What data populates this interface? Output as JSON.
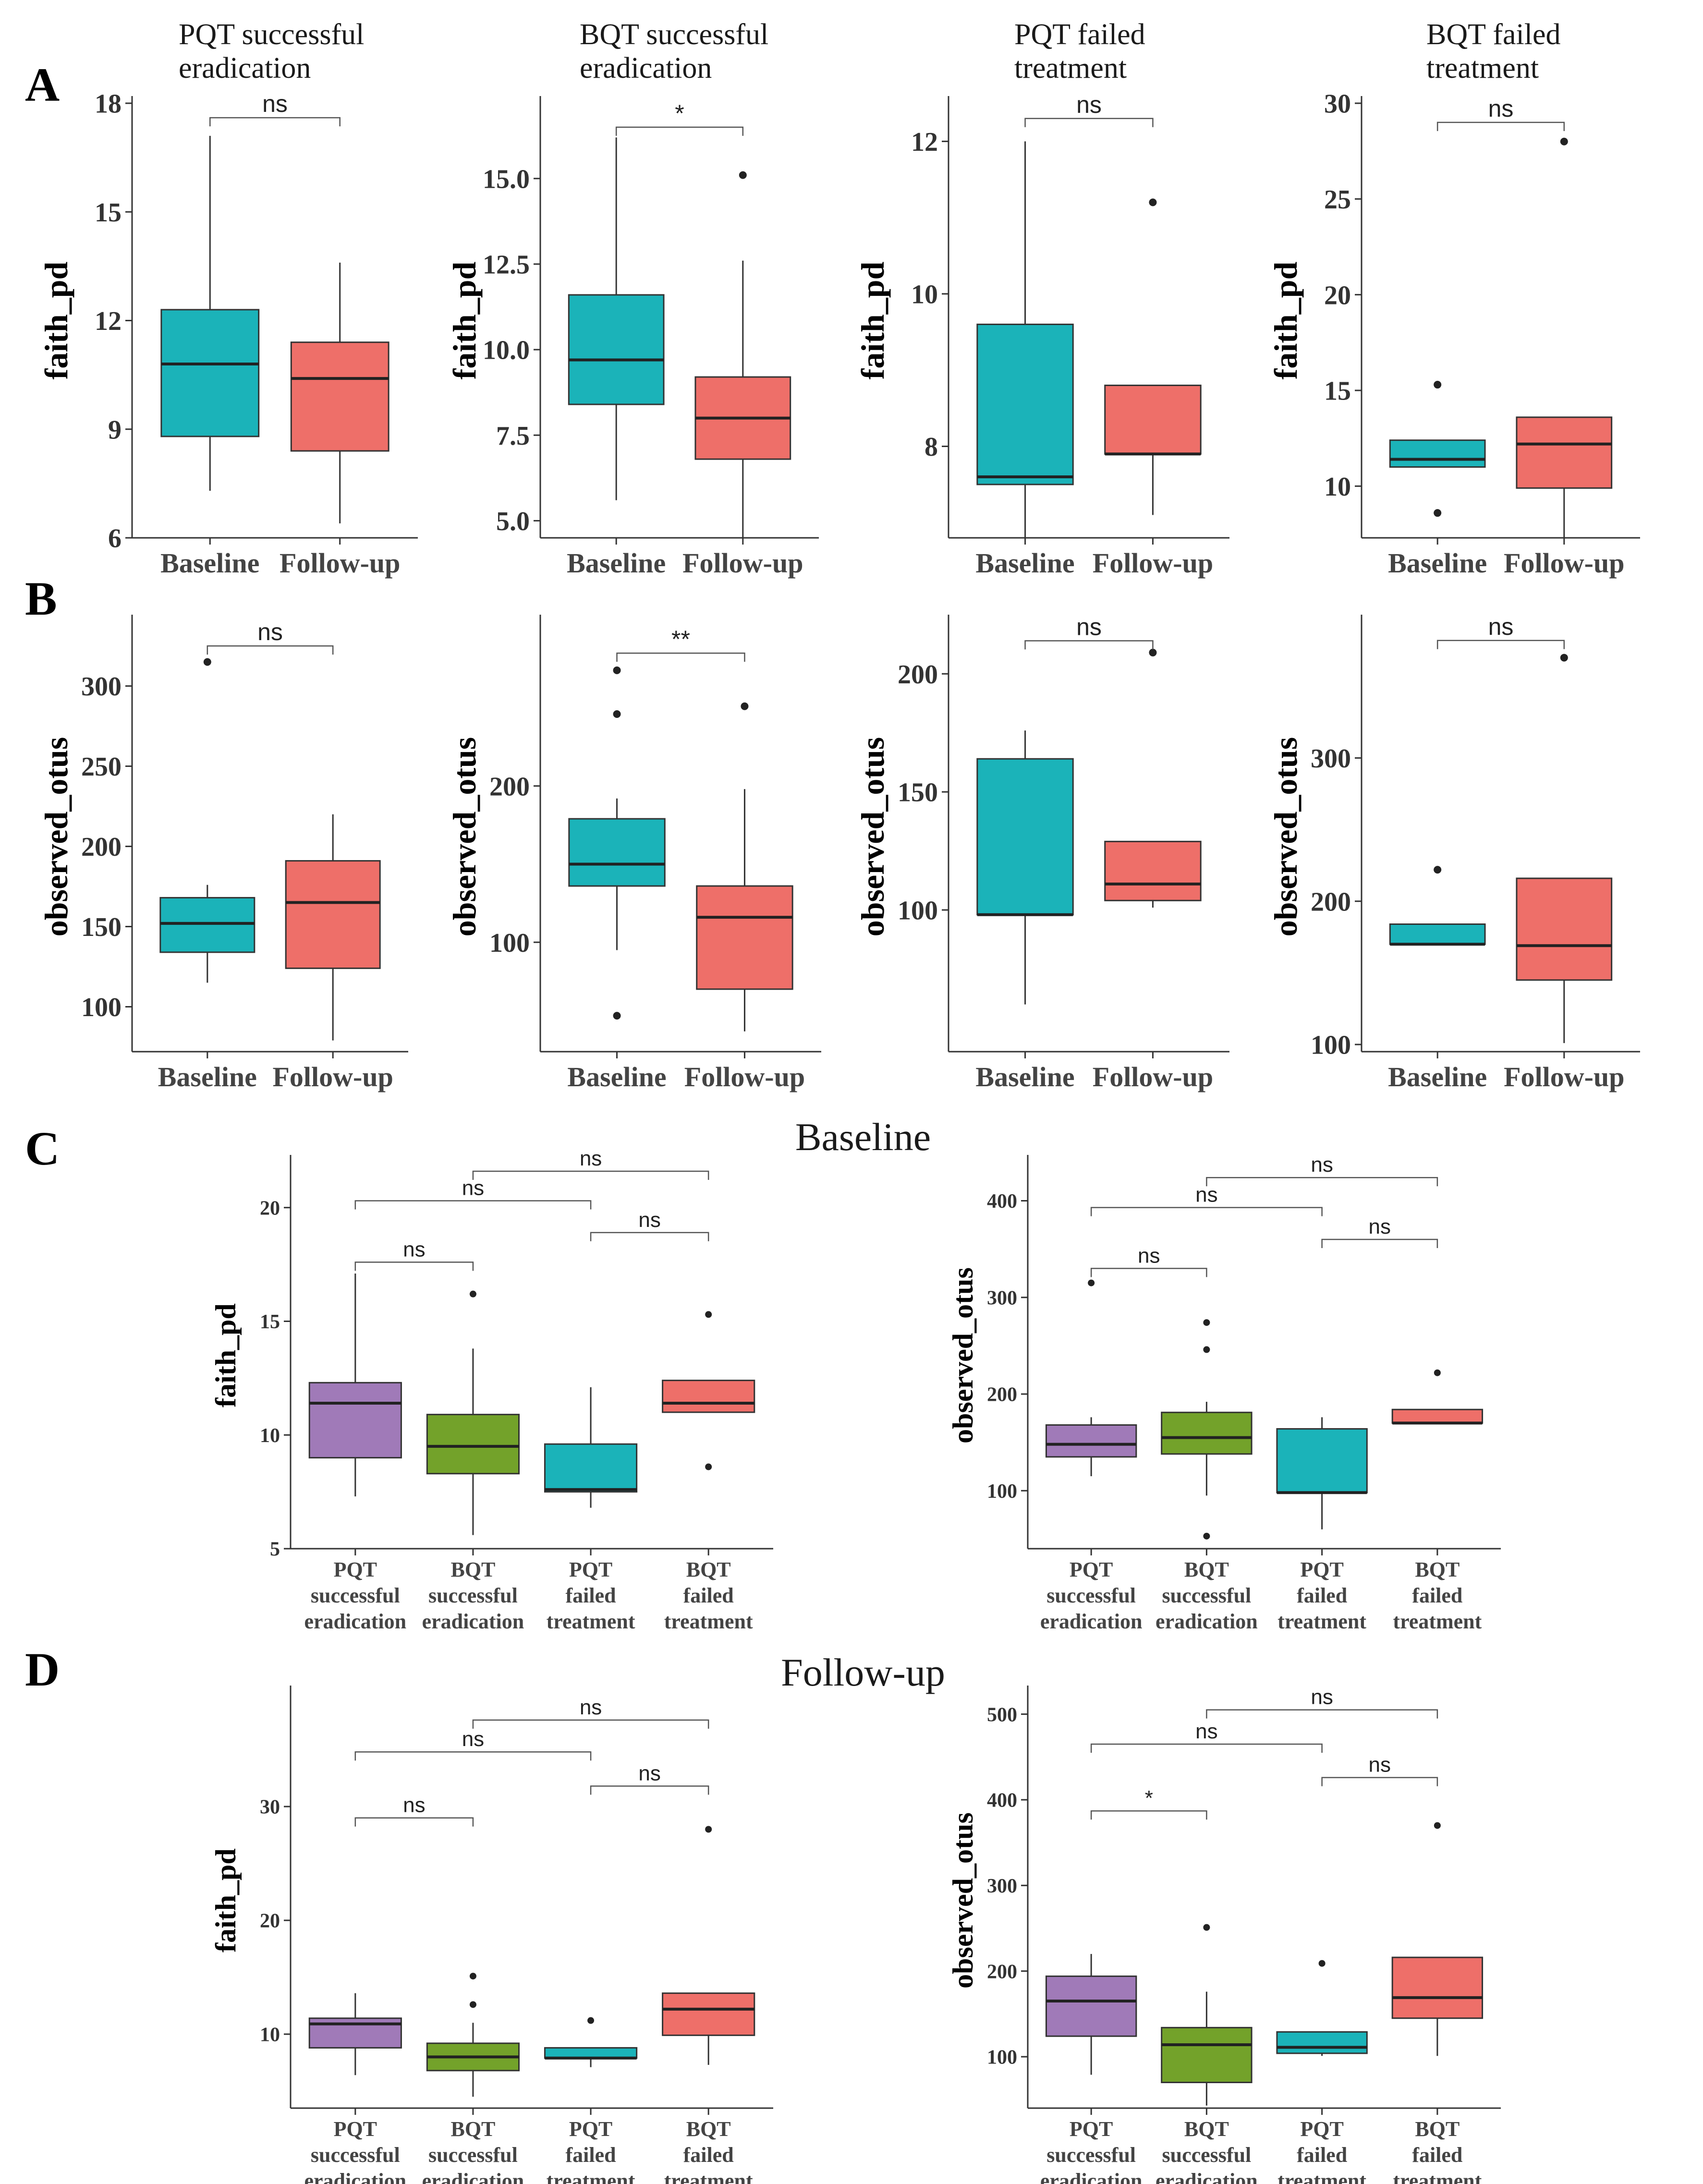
{
  "panel_letters": [
    "A",
    "B",
    "C",
    "D"
  ],
  "column_titles": [
    [
      "PQT successful",
      "eradication"
    ],
    [
      "BQT successful",
      "eradication"
    ],
    [
      "PQT failed",
      "treatment"
    ],
    [
      "BQT failed",
      "treatment"
    ]
  ],
  "row_titles": {
    "C": "Baseline",
    "D": "Follow-up"
  },
  "colors": {
    "baseline": "#1bb3b9",
    "followup": "#ee6f69",
    "pqt_success": "#a07ab8",
    "bqt_success": "#73a22a",
    "pqt_failed": "#1bb3b9",
    "bqt_failed": "#ee6f69"
  },
  "chart_data": [
    {
      "id": "A1",
      "row": "A",
      "type": "box",
      "ylabel": "faith_pd",
      "ylim": [
        6,
        18
      ],
      "yticks": [
        6,
        9,
        12,
        15,
        18
      ],
      "tick_fmt": 0,
      "categories": [
        "Baseline",
        "Follow-up"
      ],
      "boxes": [
        {
          "min": 7.3,
          "q1": 8.8,
          "median": 10.8,
          "q3": 12.3,
          "max": 17.1,
          "outliers": [],
          "color": "baseline"
        },
        {
          "min": 6.4,
          "q1": 8.4,
          "median": 10.4,
          "q3": 11.4,
          "max": 13.6,
          "outliers": [],
          "color": "followup"
        }
      ],
      "brackets": [
        {
          "from": 0,
          "to": 1,
          "y": 17.6,
          "label": "ns"
        }
      ]
    },
    {
      "id": "A2",
      "row": "A",
      "type": "box",
      "ylabel": "faith_pd",
      "ylim": [
        4.5,
        17.2
      ],
      "yticks": [
        5.0,
        7.5,
        10.0,
        12.5,
        15.0
      ],
      "tick_fmt": 1,
      "categories": [
        "Baseline",
        "Follow-up"
      ],
      "boxes": [
        {
          "min": 5.6,
          "q1": 8.4,
          "median": 9.7,
          "q3": 11.6,
          "max": 16.2,
          "outliers": [],
          "color": "baseline"
        },
        {
          "min": 4.5,
          "q1": 6.8,
          "median": 8.0,
          "q3": 9.2,
          "max": 12.6,
          "outliers": [
            15.1
          ],
          "color": "followup"
        }
      ],
      "brackets": [
        {
          "from": 0,
          "to": 1,
          "y": 16.5,
          "label": "*"
        }
      ]
    },
    {
      "id": "A3",
      "row": "A",
      "type": "box",
      "ylabel": "faith_pd",
      "ylim": [
        6.8,
        12.5
      ],
      "yticks": [
        8,
        10,
        12
      ],
      "tick_fmt": 0,
      "categories": [
        "Baseline",
        "Follow-up"
      ],
      "boxes": [
        {
          "min": 6.8,
          "q1": 7.5,
          "median": 7.6,
          "q3": 9.6,
          "max": 12.0,
          "outliers": [],
          "color": "baseline"
        },
        {
          "min": 7.1,
          "q1": 7.9,
          "median": 7.9,
          "q3": 8.8,
          "max": 8.8,
          "outliers": [
            11.2
          ],
          "color": "followup"
        }
      ],
      "brackets": [
        {
          "from": 0,
          "to": 1,
          "y": 12.3,
          "label": "ns"
        }
      ]
    },
    {
      "id": "A4",
      "row": "A",
      "type": "box",
      "ylabel": "faith_pd",
      "ylim": [
        7.3,
        30
      ],
      "yticks": [
        10,
        15,
        20,
        25,
        30
      ],
      "tick_fmt": 0,
      "categories": [
        "Baseline",
        "Follow-up"
      ],
      "boxes": [
        {
          "min": 11.0,
          "q1": 11.0,
          "median": 11.4,
          "q3": 12.4,
          "max": 12.4,
          "outliers": [
            8.6,
            15.3
          ],
          "color": "baseline"
        },
        {
          "min": 7.3,
          "q1": 9.9,
          "median": 12.2,
          "q3": 13.6,
          "max": 13.6,
          "outliers": [
            28.0
          ],
          "color": "followup"
        }
      ],
      "brackets": [
        {
          "from": 0,
          "to": 1,
          "y": 29.0,
          "label": "ns"
        }
      ]
    },
    {
      "id": "B1",
      "row": "B",
      "type": "box",
      "ylabel": "observed_otus",
      "ylim": [
        72,
        340
      ],
      "yticks": [
        100,
        150,
        200,
        250,
        300
      ],
      "tick_fmt": 0,
      "categories": [
        "Baseline",
        "Follow-up"
      ],
      "boxes": [
        {
          "min": 115,
          "q1": 134,
          "median": 152,
          "q3": 168,
          "max": 176,
          "outliers": [
            315
          ],
          "color": "baseline"
        },
        {
          "min": 79,
          "q1": 124,
          "median": 165,
          "q3": 191,
          "max": 220,
          "outliers": [],
          "color": "followup"
        }
      ],
      "brackets": [
        {
          "from": 0,
          "to": 1,
          "y": 325,
          "label": "ns"
        }
      ]
    },
    {
      "id": "B2",
      "row": "B",
      "type": "box",
      "ylabel": "observed_otus",
      "ylim": [
        30,
        305
      ],
      "yticks": [
        100,
        200
      ],
      "tick_fmt": 0,
      "categories": [
        "Baseline",
        "Follow-up"
      ],
      "boxes": [
        {
          "min": 95,
          "q1": 136,
          "median": 150,
          "q3": 179,
          "max": 192,
          "outliers": [
            53,
            246,
            274
          ],
          "color": "baseline"
        },
        {
          "min": 43,
          "q1": 70,
          "median": 116,
          "q3": 136,
          "max": 198,
          "outliers": [
            251
          ],
          "color": "followup"
        }
      ],
      "brackets": [
        {
          "from": 0,
          "to": 1,
          "y": 285,
          "label": "**"
        }
      ]
    },
    {
      "id": "B3",
      "row": "B",
      "type": "box",
      "ylabel": "observed_otus",
      "ylim": [
        40,
        222
      ],
      "yticks": [
        100,
        150,
        200
      ],
      "tick_fmt": 0,
      "categories": [
        "Baseline",
        "Follow-up"
      ],
      "boxes": [
        {
          "min": 60,
          "q1": 98,
          "median": 98,
          "q3": 164,
          "max": 176,
          "outliers": [],
          "color": "baseline"
        },
        {
          "min": 101,
          "q1": 104,
          "median": 111,
          "q3": 129,
          "max": 129,
          "outliers": [
            209
          ],
          "color": "followup"
        }
      ],
      "brackets": [
        {
          "from": 0,
          "to": 1,
          "y": 214,
          "label": "ns"
        }
      ]
    },
    {
      "id": "B4",
      "row": "B",
      "type": "box",
      "ylabel": "observed_otus",
      "ylim": [
        95,
        395
      ],
      "yticks": [
        100,
        200,
        300
      ],
      "tick_fmt": 0,
      "categories": [
        "Baseline",
        "Follow-up"
      ],
      "boxes": [
        {
          "min": 170,
          "q1": 170,
          "median": 170,
          "q3": 184,
          "max": 184,
          "outliers": [
            222
          ],
          "color": "baseline"
        },
        {
          "min": 101,
          "q1": 145,
          "median": 169,
          "q3": 216,
          "max": 216,
          "outliers": [
            370
          ],
          "color": "followup"
        }
      ],
      "brackets": [
        {
          "from": 0,
          "to": 1,
          "y": 382,
          "label": "ns"
        }
      ]
    },
    {
      "id": "C1",
      "row": "C",
      "type": "box",
      "ylabel": "faith_pd",
      "ylim": [
        5,
        22
      ],
      "yticks": [
        5,
        10,
        15,
        20
      ],
      "tick_fmt": 0,
      "categories": [
        [
          "PQT",
          "successful",
          "eradication"
        ],
        [
          "BQT",
          "successful",
          "eradication"
        ],
        [
          "PQT",
          "failed",
          "treatment"
        ],
        [
          "BQT",
          "failed",
          "treatment"
        ]
      ],
      "boxes": [
        {
          "min": 7.3,
          "q1": 9.0,
          "median": 11.4,
          "q3": 12.3,
          "max": 17.1,
          "outliers": [],
          "color": "pqt_success"
        },
        {
          "min": 5.6,
          "q1": 8.3,
          "median": 9.5,
          "q3": 10.9,
          "max": 13.8,
          "outliers": [
            16.2
          ],
          "color": "bqt_success"
        },
        {
          "min": 6.8,
          "q1": 7.5,
          "median": 7.6,
          "q3": 9.6,
          "max": 12.1,
          "outliers": [],
          "color": "pqt_failed"
        },
        {
          "min": 11.0,
          "q1": 11.0,
          "median": 11.4,
          "q3": 12.4,
          "max": 12.4,
          "outliers": [
            8.6,
            15.3
          ],
          "color": "bqt_failed"
        }
      ],
      "brackets": [
        {
          "from": 0,
          "to": 1,
          "y": 17.6,
          "label": "ns"
        },
        {
          "from": 2,
          "to": 3,
          "y": 18.9,
          "label": "ns"
        },
        {
          "from": 0,
          "to": 2,
          "y": 20.3,
          "label": "ns"
        },
        {
          "from": 1,
          "to": 3,
          "y": 21.6,
          "label": "ns"
        }
      ]
    },
    {
      "id": "C2",
      "row": "C",
      "type": "box",
      "ylabel": "observed_otus",
      "ylim": [
        40,
        440
      ],
      "yticks": [
        100,
        200,
        300,
        400
      ],
      "tick_fmt": 0,
      "categories": [
        [
          "PQT",
          "successful",
          "eradication"
        ],
        [
          "BQT",
          "successful",
          "eradication"
        ],
        [
          "PQT",
          "failed",
          "treatment"
        ],
        [
          "BQT",
          "failed",
          "treatment"
        ]
      ],
      "boxes": [
        {
          "min": 115,
          "q1": 135,
          "median": 148,
          "q3": 168,
          "max": 176,
          "outliers": [
            315
          ],
          "color": "pqt_success"
        },
        {
          "min": 95,
          "q1": 138,
          "median": 155,
          "q3": 181,
          "max": 192,
          "outliers": [
            53,
            246,
            274
          ],
          "color": "bqt_success"
        },
        {
          "min": 60,
          "q1": 98,
          "median": 98,
          "q3": 164,
          "max": 176,
          "outliers": [],
          "color": "pqt_failed"
        },
        {
          "min": 170,
          "q1": 170,
          "median": 170,
          "q3": 184,
          "max": 184,
          "outliers": [
            222
          ],
          "color": "bqt_failed"
        }
      ],
      "brackets": [
        {
          "from": 0,
          "to": 1,
          "y": 330,
          "label": "ns"
        },
        {
          "from": 2,
          "to": 3,
          "y": 360,
          "label": "ns"
        },
        {
          "from": 0,
          "to": 2,
          "y": 393,
          "label": "ns"
        },
        {
          "from": 1,
          "to": 3,
          "y": 424,
          "label": "ns"
        }
      ]
    },
    {
      "id": "D1",
      "row": "D",
      "type": "box",
      "ylabel": "faith_pd",
      "ylim": [
        3.5,
        40
      ],
      "yticks": [
        10,
        20,
        30
      ],
      "tick_fmt": 0,
      "categories": [
        [
          "PQT",
          "successful",
          "eradication"
        ],
        [
          "BQT",
          "successful",
          "eradication"
        ],
        [
          "PQT",
          "failed",
          "treatment"
        ],
        [
          "BQT",
          "failed",
          "treatment"
        ]
      ],
      "boxes": [
        {
          "min": 6.4,
          "q1": 8.8,
          "median": 10.9,
          "q3": 11.4,
          "max": 13.6,
          "outliers": [],
          "color": "pqt_success"
        },
        {
          "min": 4.5,
          "q1": 6.8,
          "median": 8.0,
          "q3": 9.2,
          "max": 11.0,
          "outliers": [
            12.6,
            15.1
          ],
          "color": "bqt_success"
        },
        {
          "min": 7.1,
          "q1": 7.9,
          "median": 7.9,
          "q3": 8.8,
          "max": 8.8,
          "outliers": [
            11.2
          ],
          "color": "pqt_failed"
        },
        {
          "min": 7.3,
          "q1": 9.9,
          "median": 12.2,
          "q3": 13.6,
          "max": 13.6,
          "outliers": [
            28.0
          ],
          "color": "bqt_failed"
        }
      ],
      "brackets": [
        {
          "from": 0,
          "to": 1,
          "y": 29.0,
          "label": "ns"
        },
        {
          "from": 2,
          "to": 3,
          "y": 31.8,
          "label": "ns"
        },
        {
          "from": 0,
          "to": 2,
          "y": 34.8,
          "label": "ns"
        },
        {
          "from": 1,
          "to": 3,
          "y": 37.6,
          "label": "ns"
        }
      ]
    },
    {
      "id": "D2",
      "row": "D",
      "type": "box",
      "ylabel": "observed_otus",
      "ylim": [
        40,
        525
      ],
      "yticks": [
        100,
        200,
        300,
        400,
        500
      ],
      "tick_fmt": 0,
      "categories": [
        [
          "PQT",
          "successful",
          "eradication"
        ],
        [
          "BQT",
          "successful",
          "eradication"
        ],
        [
          "PQT",
          "failed",
          "treatment"
        ],
        [
          "BQT",
          "failed",
          "treatment"
        ]
      ],
      "boxes": [
        {
          "min": 79,
          "q1": 124,
          "median": 165,
          "q3": 194,
          "max": 220,
          "outliers": [],
          "color": "pqt_success"
        },
        {
          "min": 43,
          "q1": 70,
          "median": 114,
          "q3": 134,
          "max": 176,
          "outliers": [
            251
          ],
          "color": "bqt_success"
        },
        {
          "min": 101,
          "q1": 104,
          "median": 111,
          "q3": 129,
          "max": 129,
          "outliers": [
            209
          ],
          "color": "pqt_failed"
        },
        {
          "min": 101,
          "q1": 145,
          "median": 169,
          "q3": 216,
          "max": 216,
          "outliers": [
            370
          ],
          "color": "bqt_failed"
        }
      ],
      "brackets": [
        {
          "from": 0,
          "to": 1,
          "y": 387,
          "label": "*"
        },
        {
          "from": 2,
          "to": 3,
          "y": 426,
          "label": "ns"
        },
        {
          "from": 0,
          "to": 2,
          "y": 465,
          "label": "ns"
        },
        {
          "from": 1,
          "to": 3,
          "y": 505,
          "label": "ns"
        }
      ]
    }
  ]
}
